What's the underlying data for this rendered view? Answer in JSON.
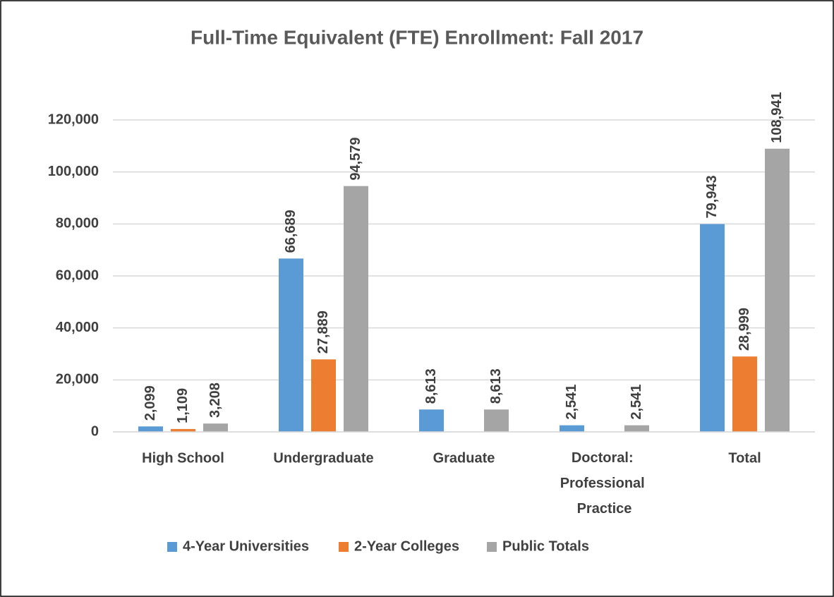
{
  "chart_data": {
    "type": "bar",
    "title": "Full-Time Equivalent (FTE) Enrollment: Fall 2017",
    "categories": [
      "High School",
      "Undergraduate",
      "Graduate",
      "Doctoral: Professional Practice",
      "Total"
    ],
    "series": [
      {
        "name": "4-Year Universities",
        "color": "#5b9bd5",
        "values": [
          2099,
          66689,
          8613,
          2541,
          79943
        ],
        "value_labels": [
          "2,099",
          "66,689",
          "8,613",
          "2,541",
          "79,943"
        ]
      },
      {
        "name": "2-Year Colleges",
        "color": "#ed7d31",
        "values": [
          1109,
          27889,
          null,
          null,
          28999
        ],
        "value_labels": [
          "1,109",
          "27,889",
          null,
          null,
          "28,999"
        ]
      },
      {
        "name": "Public Totals",
        "color": "#a5a5a5",
        "values": [
          3208,
          94579,
          8613,
          2541,
          108941
        ],
        "value_labels": [
          "3,208",
          "94,579",
          "8,613",
          "2,541",
          "108,941"
        ]
      }
    ],
    "ylim": [
      0,
      120000
    ],
    "yticks": [
      0,
      {
        "value": 20000,
        "label": "20,000"
      },
      {
        "value": 40000,
        "label": "40,000"
      },
      {
        "value": 60000,
        "label": "60,000"
      },
      {
        "value": 80000,
        "label": "80,000"
      },
      {
        "value": 100000,
        "label": "100,000"
      },
      {
        "value": 120000,
        "label": "120,000"
      }
    ],
    "grid": true,
    "legend": "bottom"
  }
}
